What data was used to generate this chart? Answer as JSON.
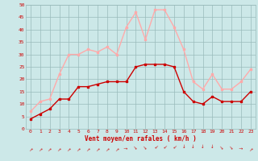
{
  "hours": [
    0,
    1,
    2,
    3,
    4,
    5,
    6,
    7,
    8,
    9,
    10,
    11,
    12,
    13,
    14,
    15,
    16,
    17,
    18,
    19,
    20,
    21,
    22,
    23
  ],
  "avg_wind": [
    4,
    6,
    8,
    12,
    12,
    17,
    17,
    18,
    19,
    19,
    19,
    25,
    26,
    26,
    26,
    25,
    15,
    11,
    10,
    13,
    11,
    11,
    11,
    15
  ],
  "gust_wind": [
    7,
    11,
    12,
    22,
    30,
    30,
    32,
    31,
    33,
    30,
    41,
    47,
    36,
    48,
    48,
    41,
    32,
    19,
    16,
    22,
    16,
    16,
    19,
    24
  ],
  "avg_color": "#cc0000",
  "gust_color": "#ffaaaa",
  "bg_color": "#cce8e8",
  "grid_color": "#99bbbb",
  "xlabel": "Vent moyen/en rafales ( km/h )",
  "xlabel_color": "#cc0000",
  "ylabel_color": "#cc0000",
  "tick_color": "#cc0000",
  "ylim": [
    0,
    50
  ],
  "yticks": [
    0,
    5,
    10,
    15,
    20,
    25,
    30,
    35,
    40,
    45,
    50
  ]
}
